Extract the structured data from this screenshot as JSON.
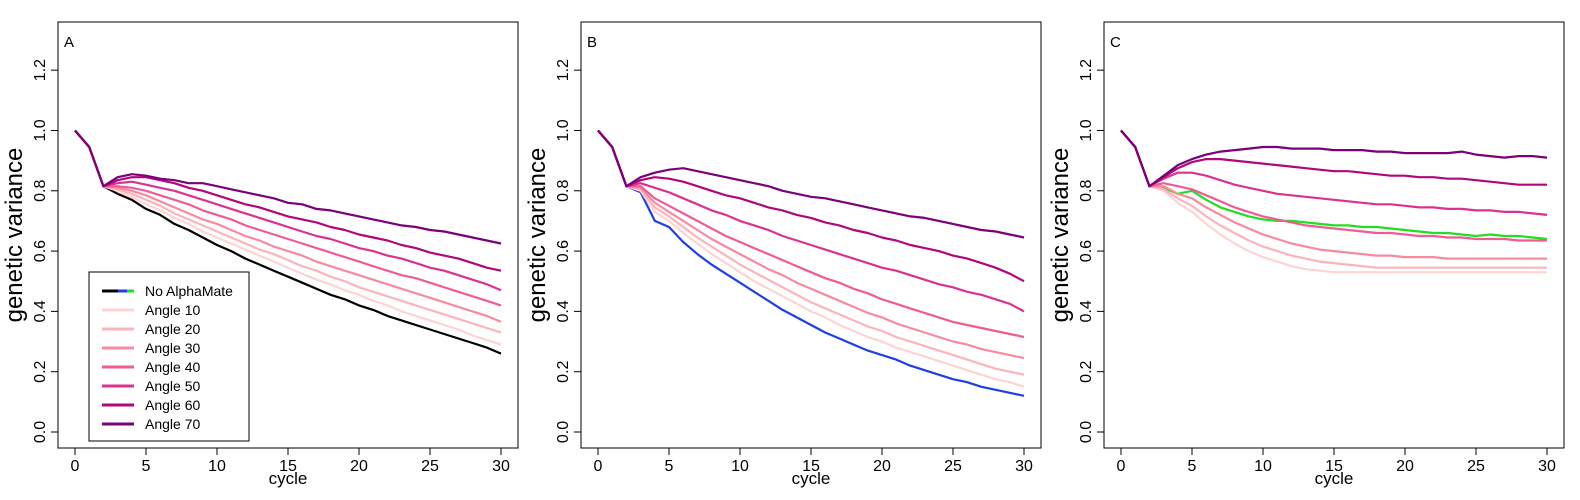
{
  "figure": {
    "legend": {
      "placement": "bottom-left of panel A",
      "entries": [
        "No AlphaMate",
        "Angle 10",
        "Angle 20",
        "Angle 30",
        "Angle 40",
        "Angle 50",
        "Angle 60",
        "Angle 70"
      ],
      "no_alphamate_colors": [
        "#000000",
        "#1f3fe6",
        "#22dd22"
      ]
    }
  },
  "chart_data": [
    {
      "type": "line",
      "panel_label": "A",
      "xlabel": "cycle",
      "ylabel": "genetic variance",
      "xlim": [
        0,
        30
      ],
      "ylim": [
        0,
        1.3
      ],
      "xticks": [
        0,
        5,
        10,
        15,
        20,
        25,
        30
      ],
      "yticks": [
        "0.0",
        "0.2",
        "0.4",
        "0.6",
        "0.8",
        "1.0",
        "1.2"
      ],
      "grid": false,
      "x": [
        0,
        1,
        2,
        3,
        4,
        5,
        6,
        7,
        8,
        9,
        10,
        11,
        12,
        13,
        14,
        15,
        16,
        17,
        18,
        19,
        20,
        21,
        22,
        23,
        24,
        25,
        26,
        27,
        28,
        29,
        30
      ],
      "series": [
        {
          "name": "No AlphaMate",
          "color": "#000000",
          "values": [
            1.0,
            0.945,
            0.815,
            0.79,
            0.77,
            0.74,
            0.72,
            0.69,
            0.67,
            0.645,
            0.62,
            0.6,
            0.575,
            0.555,
            0.535,
            0.515,
            0.495,
            0.475,
            0.455,
            0.44,
            0.42,
            0.405,
            0.385,
            0.37,
            0.355,
            0.34,
            0.325,
            0.31,
            0.295,
            0.28,
            0.26
          ]
        },
        {
          "name": "Angle 10",
          "color": "#fcd5d2",
          "values": [
            1.0,
            0.945,
            0.815,
            0.8,
            0.78,
            0.755,
            0.735,
            0.71,
            0.69,
            0.665,
            0.645,
            0.625,
            0.605,
            0.585,
            0.565,
            0.545,
            0.525,
            0.505,
            0.49,
            0.47,
            0.455,
            0.435,
            0.42,
            0.4,
            0.385,
            0.37,
            0.355,
            0.34,
            0.32,
            0.305,
            0.29
          ]
        },
        {
          "name": "Angle 20",
          "color": "#fbb4b9",
          "values": [
            1.0,
            0.945,
            0.815,
            0.805,
            0.79,
            0.77,
            0.75,
            0.725,
            0.705,
            0.685,
            0.665,
            0.645,
            0.625,
            0.605,
            0.59,
            0.57,
            0.55,
            0.535,
            0.515,
            0.5,
            0.48,
            0.465,
            0.45,
            0.435,
            0.42,
            0.405,
            0.39,
            0.375,
            0.36,
            0.345,
            0.33
          ]
        },
        {
          "name": "Angle 30",
          "color": "#f88aa0",
          "values": [
            1.0,
            0.945,
            0.815,
            0.81,
            0.8,
            0.785,
            0.765,
            0.745,
            0.725,
            0.705,
            0.69,
            0.67,
            0.65,
            0.635,
            0.615,
            0.6,
            0.585,
            0.565,
            0.55,
            0.535,
            0.52,
            0.505,
            0.49,
            0.475,
            0.46,
            0.445,
            0.43,
            0.415,
            0.4,
            0.385,
            0.365
          ]
        },
        {
          "name": "Angle 40",
          "color": "#ee5c96",
          "values": [
            1.0,
            0.945,
            0.815,
            0.815,
            0.81,
            0.8,
            0.785,
            0.77,
            0.755,
            0.735,
            0.72,
            0.705,
            0.685,
            0.67,
            0.655,
            0.64,
            0.625,
            0.61,
            0.595,
            0.58,
            0.565,
            0.55,
            0.535,
            0.52,
            0.51,
            0.495,
            0.48,
            0.465,
            0.45,
            0.435,
            0.42
          ]
        },
        {
          "name": "Angle 50",
          "color": "#d9338f",
          "values": [
            1.0,
            0.945,
            0.815,
            0.825,
            0.83,
            0.82,
            0.81,
            0.8,
            0.785,
            0.77,
            0.755,
            0.74,
            0.725,
            0.71,
            0.695,
            0.68,
            0.665,
            0.65,
            0.64,
            0.625,
            0.61,
            0.6,
            0.585,
            0.575,
            0.56,
            0.545,
            0.535,
            0.52,
            0.505,
            0.49,
            0.47
          ]
        },
        {
          "name": "Angle 60",
          "color": "#b0087a",
          "values": [
            1.0,
            0.945,
            0.815,
            0.835,
            0.845,
            0.845,
            0.835,
            0.825,
            0.81,
            0.8,
            0.785,
            0.77,
            0.755,
            0.745,
            0.73,
            0.715,
            0.705,
            0.695,
            0.68,
            0.67,
            0.655,
            0.645,
            0.635,
            0.62,
            0.61,
            0.595,
            0.585,
            0.575,
            0.56,
            0.545,
            0.535
          ]
        },
        {
          "name": "Angle 70",
          "color": "#7a0177",
          "values": [
            1.0,
            0.945,
            0.815,
            0.845,
            0.855,
            0.85,
            0.84,
            0.835,
            0.825,
            0.825,
            0.815,
            0.805,
            0.795,
            0.785,
            0.775,
            0.76,
            0.755,
            0.74,
            0.735,
            0.725,
            0.715,
            0.705,
            0.695,
            0.685,
            0.68,
            0.67,
            0.665,
            0.655,
            0.645,
            0.635,
            0.625
          ]
        }
      ]
    },
    {
      "type": "line",
      "panel_label": "B",
      "xlabel": "cycle",
      "ylabel": "genetic variance",
      "xlim": [
        0,
        30
      ],
      "ylim": [
        0,
        1.3
      ],
      "xticks": [
        0,
        5,
        10,
        15,
        20,
        25,
        30
      ],
      "yticks": [
        "0.0",
        "0.2",
        "0.4",
        "0.6",
        "0.8",
        "1.0",
        "1.2"
      ],
      "grid": false,
      "x": [
        0,
        1,
        2,
        3,
        4,
        5,
        6,
        7,
        8,
        9,
        10,
        11,
        12,
        13,
        14,
        15,
        16,
        17,
        18,
        19,
        20,
        21,
        22,
        23,
        24,
        25,
        26,
        27,
        28,
        29,
        30
      ],
      "series": [
        {
          "name": "No AlphaMate",
          "color": "#1f3fe6",
          "values": [
            1.0,
            0.945,
            0.815,
            0.795,
            0.7,
            0.68,
            0.63,
            0.59,
            0.555,
            0.525,
            0.495,
            0.465,
            0.435,
            0.405,
            0.38,
            0.355,
            0.33,
            0.31,
            0.29,
            0.27,
            0.255,
            0.24,
            0.22,
            0.205,
            0.19,
            0.175,
            0.165,
            0.15,
            0.14,
            0.13,
            0.12
          ]
        },
        {
          "name": "Angle 10",
          "color": "#fcd5d2",
          "values": [
            1.0,
            0.945,
            0.815,
            0.8,
            0.73,
            0.7,
            0.66,
            0.625,
            0.59,
            0.56,
            0.53,
            0.5,
            0.475,
            0.45,
            0.425,
            0.4,
            0.38,
            0.355,
            0.335,
            0.315,
            0.3,
            0.28,
            0.265,
            0.25,
            0.235,
            0.22,
            0.205,
            0.19,
            0.175,
            0.165,
            0.15
          ]
        },
        {
          "name": "Angle 20",
          "color": "#fbb4b9",
          "values": [
            1.0,
            0.945,
            0.815,
            0.805,
            0.745,
            0.715,
            0.68,
            0.645,
            0.615,
            0.585,
            0.555,
            0.53,
            0.505,
            0.48,
            0.455,
            0.43,
            0.41,
            0.39,
            0.37,
            0.35,
            0.335,
            0.315,
            0.3,
            0.285,
            0.27,
            0.255,
            0.24,
            0.225,
            0.21,
            0.2,
            0.19
          ]
        },
        {
          "name": "Angle 30",
          "color": "#f88aa0",
          "values": [
            1.0,
            0.945,
            0.815,
            0.81,
            0.76,
            0.73,
            0.7,
            0.67,
            0.64,
            0.615,
            0.59,
            0.565,
            0.54,
            0.52,
            0.495,
            0.475,
            0.455,
            0.435,
            0.415,
            0.395,
            0.38,
            0.36,
            0.345,
            0.33,
            0.315,
            0.3,
            0.29,
            0.275,
            0.265,
            0.255,
            0.245
          ]
        },
        {
          "name": "Angle 40",
          "color": "#ee5c96",
          "values": [
            1.0,
            0.945,
            0.815,
            0.815,
            0.775,
            0.75,
            0.725,
            0.7,
            0.675,
            0.65,
            0.63,
            0.61,
            0.59,
            0.57,
            0.55,
            0.53,
            0.51,
            0.495,
            0.475,
            0.46,
            0.44,
            0.425,
            0.41,
            0.395,
            0.38,
            0.365,
            0.355,
            0.345,
            0.335,
            0.325,
            0.315
          ]
        },
        {
          "name": "Angle 50",
          "color": "#d9338f",
          "values": [
            1.0,
            0.945,
            0.815,
            0.825,
            0.81,
            0.795,
            0.775,
            0.755,
            0.735,
            0.72,
            0.7,
            0.685,
            0.67,
            0.65,
            0.635,
            0.62,
            0.605,
            0.59,
            0.575,
            0.56,
            0.545,
            0.535,
            0.52,
            0.505,
            0.49,
            0.48,
            0.465,
            0.455,
            0.44,
            0.425,
            0.4
          ]
        },
        {
          "name": "Angle 60",
          "color": "#b0087a",
          "values": [
            1.0,
            0.945,
            0.815,
            0.835,
            0.845,
            0.84,
            0.83,
            0.815,
            0.8,
            0.785,
            0.775,
            0.76,
            0.745,
            0.735,
            0.72,
            0.71,
            0.695,
            0.685,
            0.67,
            0.66,
            0.645,
            0.635,
            0.62,
            0.61,
            0.6,
            0.585,
            0.575,
            0.56,
            0.545,
            0.525,
            0.5
          ]
        },
        {
          "name": "Angle 70",
          "color": "#7a0177",
          "values": [
            1.0,
            0.945,
            0.815,
            0.845,
            0.86,
            0.87,
            0.875,
            0.865,
            0.855,
            0.845,
            0.835,
            0.825,
            0.815,
            0.8,
            0.79,
            0.78,
            0.775,
            0.765,
            0.755,
            0.745,
            0.735,
            0.725,
            0.715,
            0.71,
            0.7,
            0.69,
            0.68,
            0.67,
            0.665,
            0.655,
            0.645
          ]
        }
      ]
    },
    {
      "type": "line",
      "panel_label": "C",
      "xlabel": "cycle",
      "ylabel": "genetic variance",
      "xlim": [
        0,
        30
      ],
      "ylim": [
        0,
        1.3
      ],
      "xticks": [
        0,
        5,
        10,
        15,
        20,
        25,
        30
      ],
      "yticks": [
        "0.0",
        "0.2",
        "0.4",
        "0.6",
        "0.8",
        "1.0",
        "1.2"
      ],
      "grid": false,
      "x": [
        0,
        1,
        2,
        3,
        4,
        5,
        6,
        7,
        8,
        9,
        10,
        11,
        12,
        13,
        14,
        15,
        16,
        17,
        18,
        19,
        20,
        21,
        22,
        23,
        24,
        25,
        26,
        27,
        28,
        29,
        30
      ],
      "series": [
        {
          "name": "No AlphaMate",
          "color": "#22dd22",
          "values": [
            1.0,
            0.945,
            0.815,
            0.81,
            0.79,
            0.8,
            0.77,
            0.745,
            0.73,
            0.715,
            0.705,
            0.7,
            0.7,
            0.695,
            0.69,
            0.685,
            0.685,
            0.68,
            0.68,
            0.675,
            0.67,
            0.665,
            0.66,
            0.66,
            0.655,
            0.65,
            0.655,
            0.65,
            0.65,
            0.645,
            0.64
          ]
        },
        {
          "name": "Angle 10",
          "color": "#fcd5d2",
          "values": [
            1.0,
            0.945,
            0.815,
            0.8,
            0.76,
            0.73,
            0.69,
            0.655,
            0.625,
            0.6,
            0.58,
            0.565,
            0.55,
            0.54,
            0.535,
            0.53,
            0.53,
            0.53,
            0.53,
            0.53,
            0.53,
            0.53,
            0.53,
            0.53,
            0.53,
            0.53,
            0.53,
            0.53,
            0.53,
            0.53,
            0.53
          ]
        },
        {
          "name": "Angle 20",
          "color": "#fbb4b9",
          "values": [
            1.0,
            0.945,
            0.815,
            0.805,
            0.775,
            0.75,
            0.715,
            0.685,
            0.66,
            0.635,
            0.615,
            0.6,
            0.585,
            0.575,
            0.565,
            0.56,
            0.555,
            0.55,
            0.545,
            0.545,
            0.545,
            0.545,
            0.545,
            0.545,
            0.545,
            0.545,
            0.545,
            0.545,
            0.545,
            0.545,
            0.545
          ]
        },
        {
          "name": "Angle 30",
          "color": "#f88aa0",
          "values": [
            1.0,
            0.945,
            0.815,
            0.815,
            0.79,
            0.775,
            0.745,
            0.72,
            0.695,
            0.675,
            0.655,
            0.64,
            0.625,
            0.615,
            0.605,
            0.6,
            0.595,
            0.59,
            0.585,
            0.585,
            0.58,
            0.58,
            0.58,
            0.575,
            0.575,
            0.575,
            0.575,
            0.575,
            0.575,
            0.575,
            0.575
          ]
        },
        {
          "name": "Angle 40",
          "color": "#ee5c96",
          "values": [
            1.0,
            0.945,
            0.815,
            0.825,
            0.815,
            0.805,
            0.785,
            0.765,
            0.745,
            0.73,
            0.715,
            0.705,
            0.695,
            0.685,
            0.68,
            0.675,
            0.67,
            0.665,
            0.66,
            0.66,
            0.655,
            0.65,
            0.65,
            0.645,
            0.645,
            0.64,
            0.64,
            0.64,
            0.635,
            0.635,
            0.635
          ]
        },
        {
          "name": "Angle 50",
          "color": "#d9338f",
          "values": [
            1.0,
            0.945,
            0.815,
            0.84,
            0.86,
            0.86,
            0.85,
            0.835,
            0.82,
            0.81,
            0.8,
            0.79,
            0.785,
            0.78,
            0.775,
            0.77,
            0.765,
            0.76,
            0.755,
            0.755,
            0.75,
            0.745,
            0.745,
            0.74,
            0.74,
            0.735,
            0.735,
            0.73,
            0.73,
            0.725,
            0.72
          ]
        },
        {
          "name": "Angle 60",
          "color": "#b0087a",
          "values": [
            1.0,
            0.945,
            0.815,
            0.845,
            0.875,
            0.895,
            0.905,
            0.905,
            0.9,
            0.895,
            0.89,
            0.885,
            0.88,
            0.875,
            0.87,
            0.865,
            0.865,
            0.86,
            0.855,
            0.85,
            0.85,
            0.845,
            0.845,
            0.84,
            0.84,
            0.835,
            0.83,
            0.825,
            0.82,
            0.82,
            0.82
          ]
        },
        {
          "name": "Angle 70",
          "color": "#7a0177",
          "values": [
            1.0,
            0.945,
            0.815,
            0.85,
            0.885,
            0.905,
            0.92,
            0.93,
            0.935,
            0.94,
            0.945,
            0.945,
            0.94,
            0.94,
            0.94,
            0.935,
            0.935,
            0.935,
            0.93,
            0.93,
            0.925,
            0.925,
            0.925,
            0.925,
            0.93,
            0.92,
            0.915,
            0.91,
            0.915,
            0.915,
            0.91
          ]
        }
      ]
    }
  ]
}
